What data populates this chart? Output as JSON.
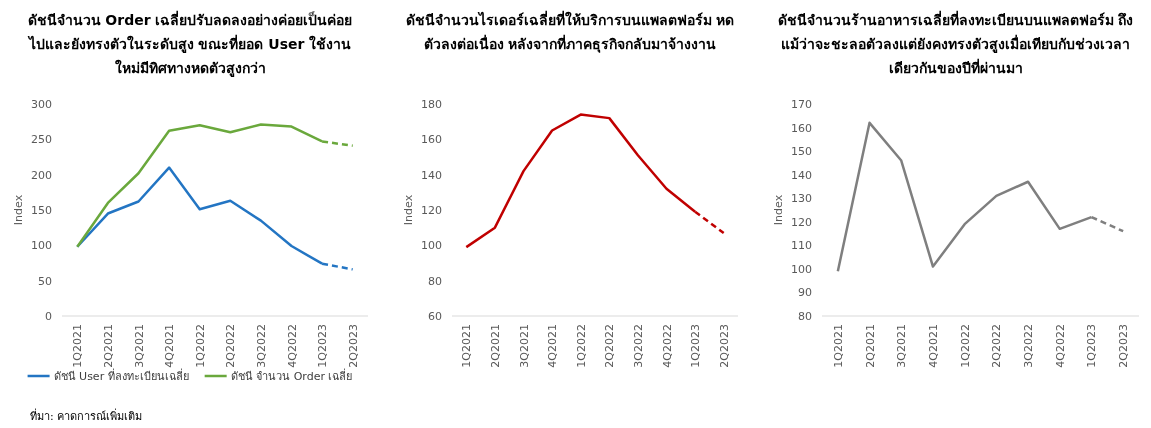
{
  "chart_data": [
    {
      "type": "line",
      "title": "ดัชนีจำนวน Order เฉลี่ยปรับลดลงอย่างค่อยเป็นค่อยไปและยังทรงตัวในระดับสูง ขณะที่ยอด User ใช้งานใหม่มีทิศทางหดตัวสูงกว่า",
      "ylabel": "Index",
      "categories": [
        "1Q2021",
        "2Q2021",
        "3Q2021",
        "4Q2021",
        "1Q2022",
        "2Q2022",
        "3Q2022",
        "4Q2022",
        "1Q2023",
        "2Q2023"
      ],
      "series": [
        {
          "name": "ดัชนี User ที่ลงทะเบียนเฉลี่ย",
          "color": "#2375c3",
          "values": [
            98,
            145,
            162,
            210,
            151,
            163,
            135,
            99,
            74,
            null
          ]
        },
        {
          "color": "#2375c3",
          "line_style": "dashed",
          "values": [
            null,
            null,
            null,
            null,
            null,
            null,
            null,
            null,
            74,
            66
          ]
        },
        {
          "name": "ดัชนี จำนวน Order เฉลี่ย",
          "color": "#6aa83c",
          "values": [
            98,
            160,
            202,
            262,
            270,
            260,
            271,
            268,
            247,
            null
          ]
        },
        {
          "color": "#6aa83c",
          "line_style": "dashed",
          "values": [
            null,
            null,
            null,
            null,
            null,
            null,
            null,
            null,
            247,
            241
          ]
        }
      ],
      "ylim": [
        0,
        300
      ],
      "yticks": [
        0,
        50,
        100,
        150,
        200,
        250,
        300
      ],
      "grid": false,
      "legend": "bottom",
      "annotations": [
        "ที่มา: คาดการณ์เพิ่มเติม"
      ]
    },
    {
      "type": "line",
      "title": "ดัชนีจำนวนไรเดอร์เฉลี่ยที่ให้บริการบนแพลตฟอร์ม หดตัวลงต่อเนื่อง หลังจากที่ภาคธุรกิจกลับมาจ้างงาน",
      "ylabel": "Index",
      "categories": [
        "1Q2021",
        "2Q2021",
        "3Q2021",
        "4Q2021",
        "1Q2022",
        "2Q2022",
        "3Q2022",
        "4Q2022",
        "1Q2023",
        "2Q2023"
      ],
      "series": [
        {
          "color": "#c00000",
          "values": [
            99,
            110,
            142,
            165,
            174,
            172,
            151,
            132,
            119,
            null
          ]
        },
        {
          "color": "#c00000",
          "line_style": "dashed",
          "values": [
            null,
            null,
            null,
            null,
            null,
            null,
            null,
            null,
            119,
            107
          ]
        }
      ],
      "ylim": [
        60,
        180
      ],
      "yticks": [
        60,
        80,
        100,
        120,
        140,
        160,
        180
      ],
      "grid": false,
      "legend": false
    },
    {
      "type": "line",
      "title": "ดัชนีจำนวนร้านอาหารเฉลี่ยที่ลงทะเบียนบนแพลตฟอร์ม ถึงแม้ว่าจะชะลอตัวลงแต่ยังคงทรงตัวสูงเมื่อเทียบกับช่วงเวลาเดียวกันของปีที่ผ่านมา",
      "ylabel": "Index",
      "categories": [
        "1Q2021",
        "2Q2021",
        "3Q2021",
        "4Q2021",
        "1Q2022",
        "2Q2022",
        "3Q2022",
        "4Q2022",
        "1Q2023",
        "2Q2023"
      ],
      "series": [
        {
          "color": "#7f7f7f",
          "values": [
            99,
            162,
            146,
            101,
            119,
            131,
            137,
            117,
            122,
            null
          ]
        },
        {
          "color": "#7f7f7f",
          "line_style": "dashed",
          "values": [
            null,
            null,
            null,
            null,
            null,
            null,
            null,
            null,
            122,
            116
          ]
        }
      ],
      "ylim": [
        80,
        170
      ],
      "yticks": [
        80,
        90,
        100,
        110,
        120,
        130,
        140,
        150,
        160,
        170
      ],
      "grid": false,
      "legend": false
    }
  ]
}
